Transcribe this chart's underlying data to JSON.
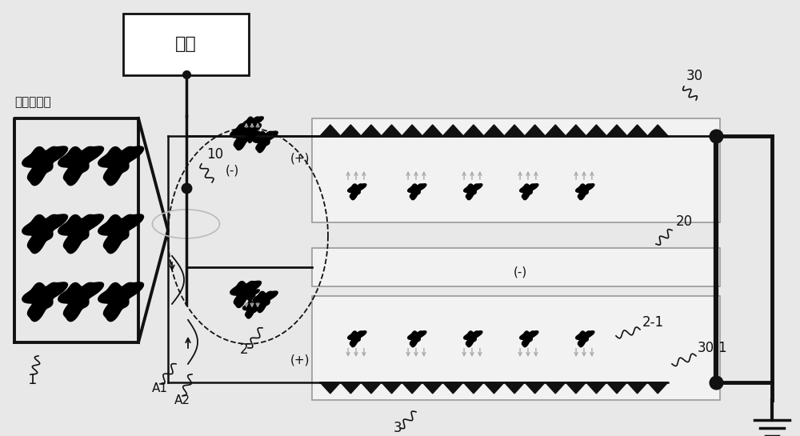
{
  "bg_color": "#e8e8e8",
  "power_label": "电源",
  "air_label": "被污染空气",
  "line_color": "#111111",
  "gray_color": "#999999",
  "white": "#ffffff",
  "plate_bg": "#efefef",
  "figsize": [
    10.0,
    5.45
  ],
  "dpi": 100
}
